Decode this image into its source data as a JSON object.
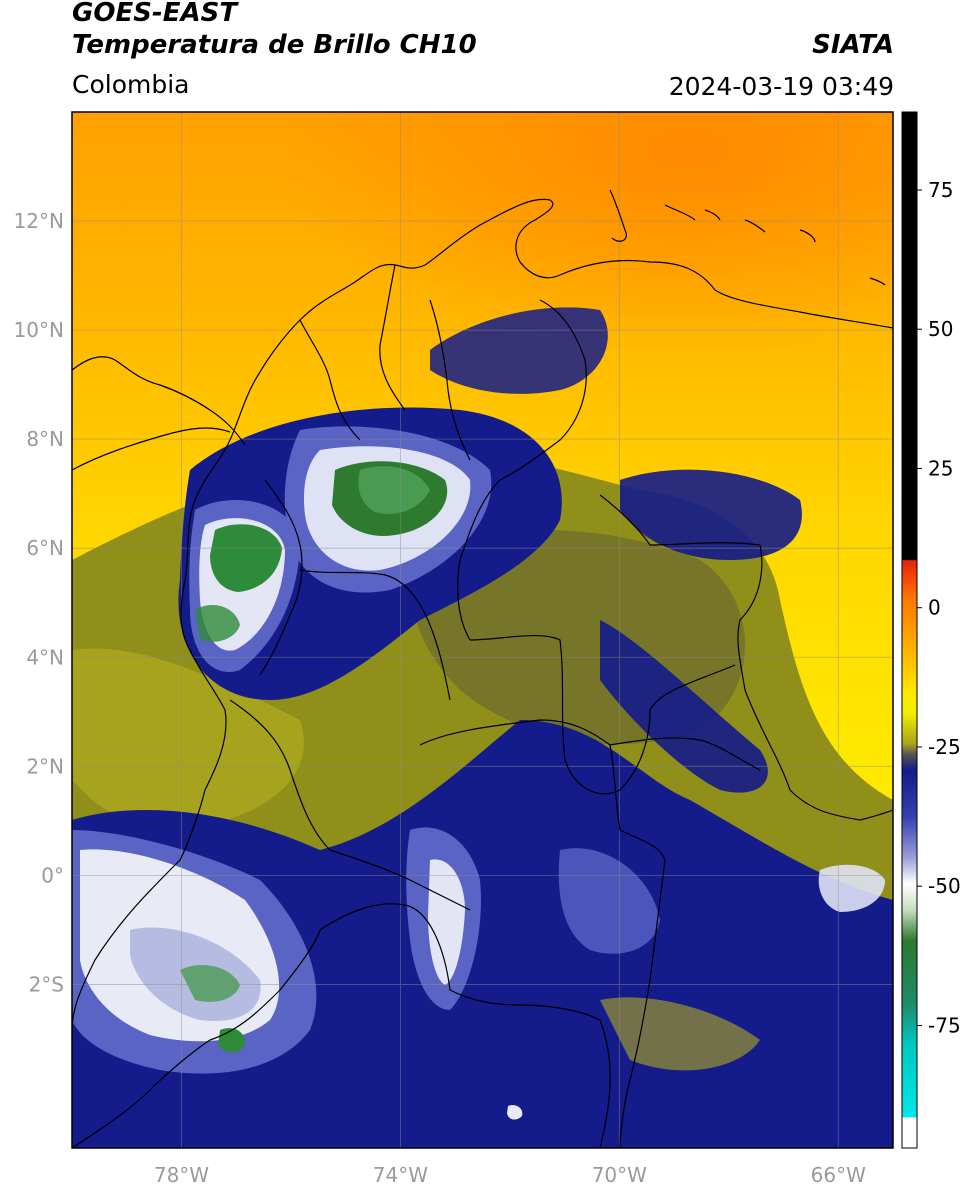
{
  "header": {
    "satellite": "GOES-EAST",
    "product": "Temperatura de Brillo CH10",
    "brand": "SIATA",
    "region": "Colombia",
    "timestamp": "2024-03-19 03:49"
  },
  "map": {
    "lon_range": [
      -80,
      -65
    ],
    "lat_range": [
      -5,
      14
    ],
    "lat_ticks": [
      {
        "value": 12,
        "label": "12°N"
      },
      {
        "value": 10,
        "label": "10°N"
      },
      {
        "value": 8,
        "label": "8°N"
      },
      {
        "value": 6,
        "label": "6°N"
      },
      {
        "value": 4,
        "label": "4°N"
      },
      {
        "value": 2,
        "label": "2°N"
      },
      {
        "value": 0,
        "label": "0°"
      },
      {
        "value": -2,
        "label": "2°S"
      }
    ],
    "lon_ticks": [
      {
        "value": -78,
        "label": "78°W"
      },
      {
        "value": -74,
        "label": "74°W"
      },
      {
        "value": -70,
        "label": "70°W"
      },
      {
        "value": -66,
        "label": "66°W"
      }
    ]
  },
  "colorbar": {
    "range": [
      -97,
      89
    ],
    "ticks": [
      {
        "value": 75,
        "label": "75"
      },
      {
        "value": 50,
        "label": "50"
      },
      {
        "value": 25,
        "label": "25"
      },
      {
        "value": 0,
        "label": "0"
      },
      {
        "value": -25,
        "label": "-25"
      },
      {
        "value": -50,
        "label": "-50"
      },
      {
        "value": -75,
        "label": "-75"
      }
    ],
    "colors": {
      "black": "#000000",
      "red": "#e8200c",
      "orange": "#ff9400",
      "yellow": "#ffe800",
      "olive": "#8f8f1a",
      "navy": "#141b8a",
      "white": "#f4f4f4",
      "green": "#2e8b3a",
      "cyan": "#00d8d8"
    }
  }
}
